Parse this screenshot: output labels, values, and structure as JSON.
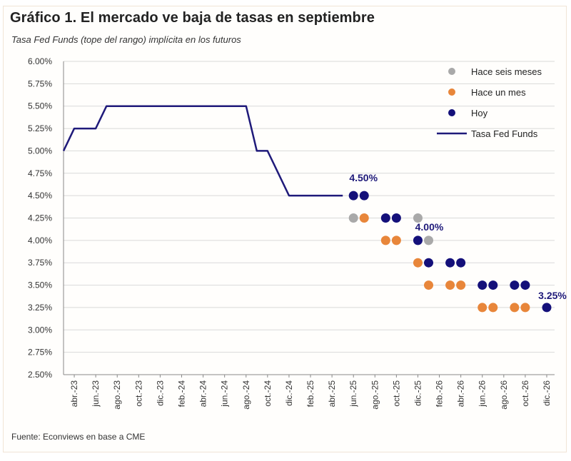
{
  "title": "Gráfico 1. El mercado ve baja de tasas en septiembre",
  "subtitle": "Tasa Fed Funds (tope del rango) implícita en los futuros",
  "source": "Fuente: Econviews en base a CME",
  "colors": {
    "line": "#1f1a7a",
    "hoy": "#14107a",
    "hace_un_mes": "#e8863a",
    "hace_seis_meses": "#a9a9a9",
    "grid": "#d9d9d9",
    "axis": "#888888",
    "label": "#1f1a7a"
  },
  "chart_data": {
    "type": "line",
    "title": "Gráfico 1. El mercado ve baja de tasas en septiembre",
    "subtitle": "Tasa Fed Funds (tope del rango) implícita en los futuros",
    "xlabel": "",
    "ylabel": "",
    "ylim": [
      2.5,
      6.0
    ],
    "y_ticks": [
      "2.50%",
      "2.75%",
      "3.00%",
      "3.25%",
      "3.50%",
      "3.75%",
      "4.00%",
      "4.25%",
      "4.50%",
      "4.75%",
      "5.00%",
      "5.25%",
      "5.50%",
      "5.75%",
      "6.00%"
    ],
    "x_ticks": [
      "abr.-23",
      "jun.-23",
      "ago.-23",
      "oct.-23",
      "dic.-23",
      "feb.-24",
      "abr.-24",
      "jun.-24",
      "ago.-24",
      "oct.-24",
      "dic.-24",
      "feb.-25",
      "abr.-25",
      "jun.-25",
      "ago.-25",
      "oct.-25",
      "dic.-25",
      "feb.-26",
      "abr.-26",
      "jun.-26",
      "ago.-26",
      "oct.-26",
      "dic.-26"
    ],
    "x_start": "mar.-23",
    "x_end": "dic.-26",
    "legend": [
      "Hace seis meses",
      "Hace un mes",
      "Hoy",
      "Tasa Fed Funds"
    ],
    "legend_position": "top-right",
    "series": [
      {
        "name": "Tasa Fed Funds",
        "style": "line",
        "points": [
          [
            "mar.-23",
            5.0
          ],
          [
            "abr.-23",
            5.25
          ],
          [
            "may.-23",
            5.25
          ],
          [
            "jun.-23",
            5.25
          ],
          [
            "jul.-23",
            5.5
          ],
          [
            "ago.-23",
            5.5
          ],
          [
            "sep.-23",
            5.5
          ],
          [
            "oct.-23",
            5.5
          ],
          [
            "nov.-23",
            5.5
          ],
          [
            "dic.-23",
            5.5
          ],
          [
            "ene.-24",
            5.5
          ],
          [
            "feb.-24",
            5.5
          ],
          [
            "mar.-24",
            5.5
          ],
          [
            "abr.-24",
            5.5
          ],
          [
            "may.-24",
            5.5
          ],
          [
            "jun.-24",
            5.5
          ],
          [
            "jul.-24",
            5.5
          ],
          [
            "ago.-24",
            5.5
          ],
          [
            "sep.-24",
            5.0
          ],
          [
            "oct.-24",
            5.0
          ],
          [
            "nov.-24",
            4.75
          ],
          [
            "dic.-24",
            4.5
          ],
          [
            "ene.-25",
            4.5
          ],
          [
            "feb.-25",
            4.5
          ],
          [
            "mar.-25",
            4.5
          ],
          [
            "abr.-25",
            4.5
          ],
          [
            "may.-25",
            4.5
          ]
        ]
      },
      {
        "name": "Hace seis meses",
        "style": "dots",
        "points": [
          [
            "jun.-25",
            4.25
          ],
          [
            "dic.-25",
            4.25
          ],
          [
            "ene.-26",
            4.0
          ]
        ]
      },
      {
        "name": "Hace un mes",
        "style": "dots",
        "points": [
          [
            "jul.-25",
            4.25
          ],
          [
            "sep.-25",
            4.0
          ],
          [
            "oct.-25",
            4.0
          ],
          [
            "dic.-25",
            3.75
          ],
          [
            "ene.-26",
            3.5
          ],
          [
            "mar.-26",
            3.5
          ],
          [
            "abr.-26",
            3.5
          ],
          [
            "jun.-26",
            3.25
          ],
          [
            "jul.-26",
            3.25
          ],
          [
            "sep.-26",
            3.25
          ],
          [
            "oct.-26",
            3.25
          ]
        ]
      },
      {
        "name": "Hoy",
        "style": "dots",
        "points": [
          [
            "jun.-25",
            4.5
          ],
          [
            "jul.-25",
            4.5
          ],
          [
            "sep.-25",
            4.25
          ],
          [
            "oct.-25",
            4.25
          ],
          [
            "dic.-25",
            4.0
          ],
          [
            "ene.-26",
            3.75
          ],
          [
            "mar.-26",
            3.75
          ],
          [
            "abr.-26",
            3.75
          ],
          [
            "jun.-26",
            3.5
          ],
          [
            "jul.-26",
            3.5
          ],
          [
            "sep.-26",
            3.5
          ],
          [
            "oct.-26",
            3.5
          ],
          [
            "dic.-26",
            3.25
          ]
        ]
      }
    ],
    "annotations": [
      {
        "text": "4.50%",
        "x": "jun.-25",
        "y": 4.5
      },
      {
        "text": "4.00%",
        "x": "dic.-25",
        "y": 4.0
      },
      {
        "text": "3.25%",
        "x": "dic.-26",
        "y": 3.25
      }
    ],
    "grid": true
  }
}
